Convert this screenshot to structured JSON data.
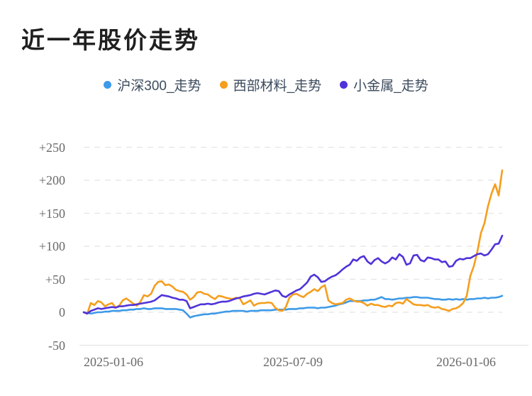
{
  "page": {
    "title": "近一年股价走势"
  },
  "legend": [
    {
      "label": "沪深300_走势",
      "color": "#3D9AE8"
    },
    {
      "label": "西部材料_走势",
      "color": "#F59E1D"
    },
    {
      "label": "小金属_走势",
      "color": "#5033D9"
    }
  ],
  "chart_data": {
    "type": "line",
    "title": "近一年股价走势",
    "xlabel": "",
    "ylabel": "",
    "ylim": [
      -50,
      250
    ],
    "y_ticks": [
      -50,
      0,
      50,
      100,
      150,
      200,
      250
    ],
    "y_tick_labels": [
      "-50",
      "0",
      "+50",
      "+100",
      "+150",
      "+200",
      "+250"
    ],
    "x_tick_labels": [
      "2025-01-06",
      "2025-07-09",
      "2026-01-06"
    ],
    "grid": "horizontal dashed",
    "legend_position": "top",
    "note": "values are percent change, evenly spaced samples from 2025-01-06 to chart end",
    "series": [
      {
        "name": "沪深300_走势",
        "color": "#3D9AE8",
        "values": [
          0,
          -1,
          -2,
          -1,
          0,
          0,
          1,
          1,
          2,
          2,
          2,
          3,
          3,
          4,
          4,
          5,
          5,
          6,
          5,
          5,
          6,
          6,
          6,
          5,
          5,
          5,
          5,
          4,
          3,
          -2,
          -8,
          -6,
          -5,
          -4,
          -3,
          -3,
          -2,
          -2,
          -1,
          0,
          1,
          1,
          2,
          2,
          2,
          2,
          1,
          2,
          2,
          2,
          3,
          3,
          3,
          3,
          4,
          4,
          4,
          4,
          5,
          5,
          5,
          6,
          6,
          7,
          7,
          7,
          6,
          7,
          7,
          8,
          9,
          10,
          12,
          13,
          15,
          17,
          17,
          17,
          17,
          18,
          18,
          19,
          19,
          21,
          23,
          20,
          20,
          19,
          20,
          21,
          21,
          22,
          22,
          23,
          23,
          22,
          22,
          22,
          21,
          20,
          20,
          19,
          19,
          20,
          19,
          20,
          19,
          20,
          19,
          20,
          20,
          21,
          21,
          22,
          21,
          22,
          22,
          23,
          25
        ]
      },
      {
        "name": "西部材料_走势",
        "color": "#F59E1D",
        "values": [
          0,
          -2,
          14,
          11,
          17,
          15,
          9,
          12,
          14,
          7,
          10,
          18,
          21,
          17,
          13,
          10,
          16,
          26,
          24,
          28,
          40,
          46,
          47,
          41,
          42,
          39,
          34,
          32,
          31,
          27,
          19,
          23,
          30,
          31,
          28,
          27,
          23,
          20,
          25,
          24,
          22,
          21,
          20,
          22,
          21,
          12,
          15,
          18,
          10,
          13,
          14,
          14,
          15,
          14,
          7,
          3,
          2,
          8,
          22,
          27,
          28,
          25,
          23,
          28,
          31,
          35,
          32,
          38,
          41,
          18,
          14,
          12,
          13,
          14,
          19,
          21,
          18,
          16,
          16,
          14,
          10,
          13,
          11,
          11,
          9,
          8,
          10,
          9,
          14,
          15,
          13,
          20,
          16,
          12,
          11,
          11,
          10,
          11,
          8,
          7,
          8,
          5,
          4,
          2,
          5,
          6,
          9,
          14,
          25,
          55,
          70,
          92,
          120,
          135,
          161,
          180,
          194,
          177,
          215
        ]
      },
      {
        "name": "小金属_走势",
        "color": "#5033D9",
        "values": [
          0,
          -2,
          2,
          4,
          6,
          5,
          6,
          7,
          8,
          7,
          9,
          9,
          10,
          11,
          11,
          12,
          13,
          14,
          15,
          16,
          18,
          22,
          26,
          25,
          24,
          22,
          21,
          19,
          19,
          17,
          6,
          8,
          10,
          12,
          12,
          13,
          12,
          13,
          15,
          16,
          16,
          17,
          19,
          21,
          22,
          24,
          25,
          26,
          28,
          29,
          28,
          27,
          29,
          31,
          33,
          32,
          25,
          23,
          27,
          30,
          33,
          35,
          40,
          45,
          54,
          57,
          53,
          46,
          47,
          51,
          54,
          56,
          60,
          65,
          69,
          72,
          80,
          78,
          83,
          85,
          77,
          73,
          79,
          82,
          77,
          74,
          77,
          83,
          80,
          88,
          84,
          72,
          74,
          86,
          87,
          79,
          77,
          83,
          82,
          80,
          80,
          76,
          77,
          69,
          70,
          78,
          81,
          80,
          82,
          82,
          85,
          88,
          89,
          86,
          88,
          95,
          103,
          104,
          116
        ]
      }
    ]
  }
}
